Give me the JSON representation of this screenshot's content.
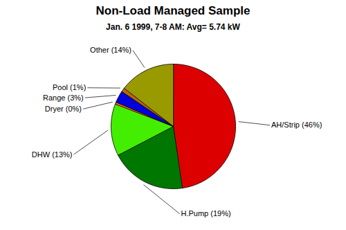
{
  "chart_data": {
    "type": "pie",
    "title": "Non-Load Managed Sample",
    "subtitle": "Jan. 6 1999, 7-8 AM:  Avg=  5.74 kW",
    "categories": [
      "AH/Strip (46%)",
      "H.Pump (19%)",
      "DHW (13%)",
      "Dryer (0%)",
      "Range (3%)",
      "Pool (1%)",
      "Other (14%)"
    ],
    "values": [
      46,
      19,
      13,
      0.5,
      3,
      1,
      14
    ],
    "colors": [
      "#dd0000",
      "#007700",
      "#44ee00",
      "#ff6600",
      "#0000dd",
      "#bb6600",
      "#999900"
    ]
  }
}
